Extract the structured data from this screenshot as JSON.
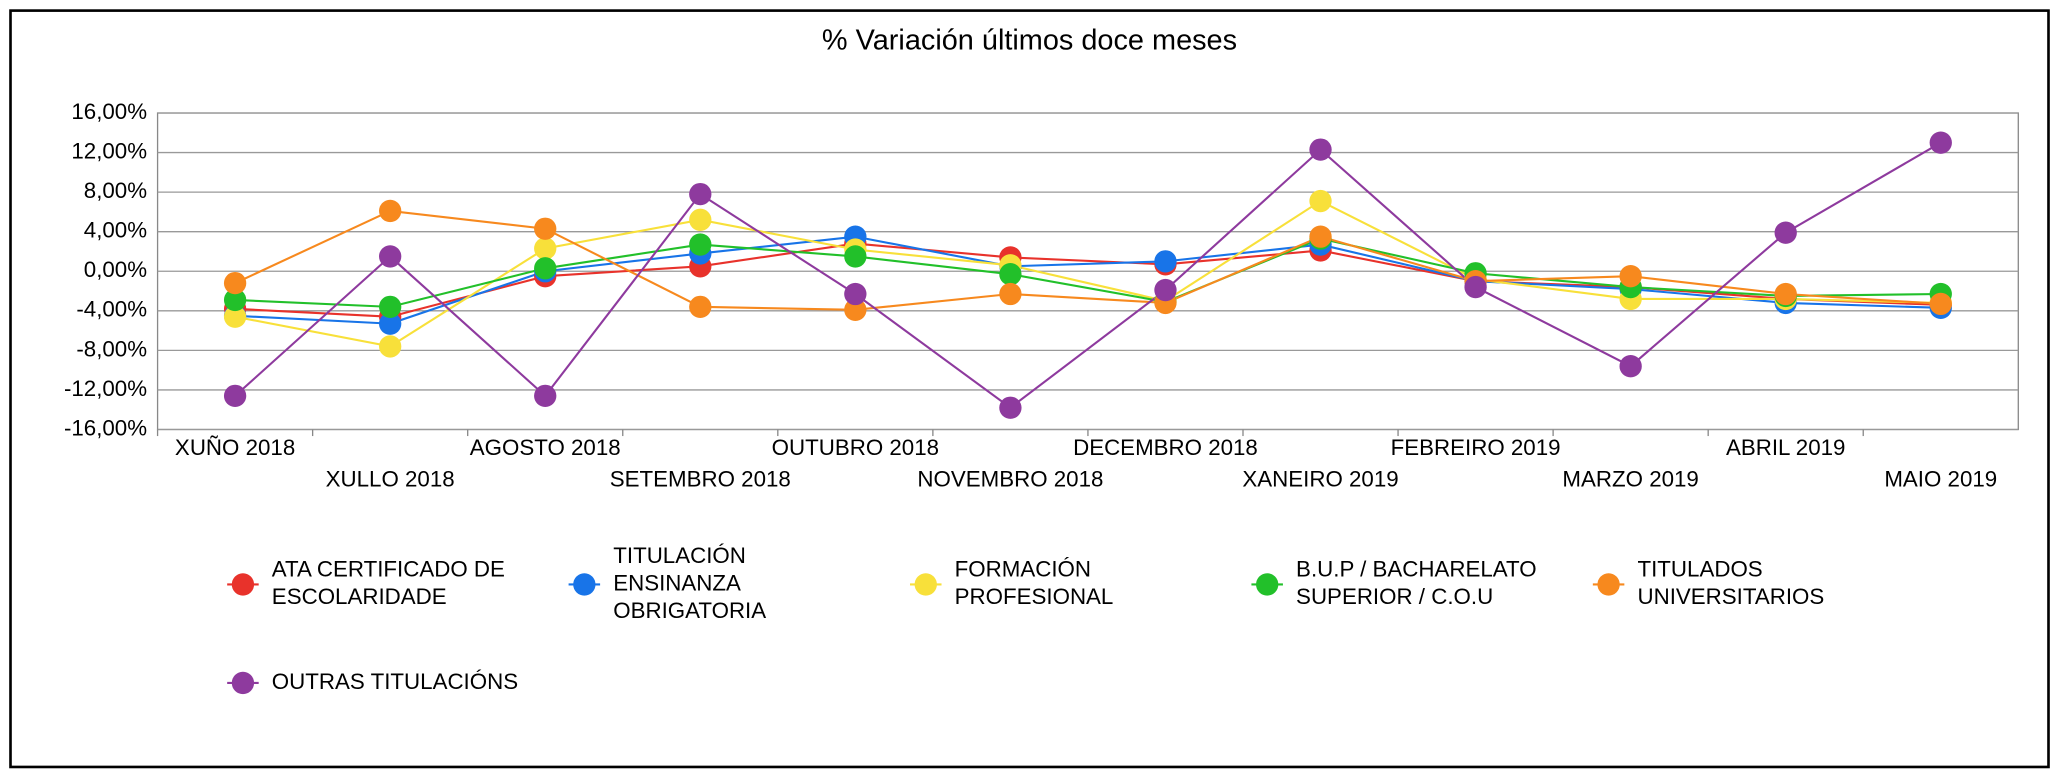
{
  "chart_data": {
    "type": "line",
    "title": "% Variación últimos doce meses",
    "categories": [
      "XUÑO 2018",
      "XULLO 2018",
      "AGOSTO 2018",
      "SETEMBRO 2018",
      "OUTUBRO 2018",
      "NOVEMBRO 2018",
      "DECEMBRO 2018",
      "XANEIRO 2019",
      "FEBREIRO 2019",
      "MARZO 2019",
      "ABRIL 2019",
      "MAIO 2019"
    ],
    "ylim": [
      -16,
      16
    ],
    "yticks": [
      {
        "value": -16,
        "label": "-16,00%"
      },
      {
        "value": -12,
        "label": "-12,00%"
      },
      {
        "value": -8,
        "label": "-8,00%"
      },
      {
        "value": -4,
        "label": "-4,00%"
      },
      {
        "value": 0,
        "label": "0,00%"
      },
      {
        "value": 4,
        "label": "4,00%"
      },
      {
        "value": 8,
        "label": "8,00%"
      },
      {
        "value": 12,
        "label": "12,00%"
      },
      {
        "value": 16,
        "label": "16,00%"
      }
    ],
    "grid": true,
    "legend": "bottom",
    "series": [
      {
        "name": "ATA CERTIFICADO DE\nESCOLARIDADE",
        "color": "#e8322b",
        "values": [
          -3.8,
          -4.6,
          -0.5,
          0.5,
          2.8,
          1.4,
          0.7,
          2.1,
          -1.0,
          -1.6,
          -2.8,
          -3.4
        ]
      },
      {
        "name": "TITULACIÓN\nENSINANZA\nOBRIGATORIA",
        "color": "#1874e8",
        "values": [
          -4.5,
          -5.3,
          0,
          1.8,
          3.5,
          0.5,
          1.0,
          2.7,
          -1.0,
          -1.8,
          -3.2,
          -3.7
        ]
      },
      {
        "name": "FORMACIÓN\nPROFESIONAL",
        "color": "#f8e03a",
        "values": [
          -4.6,
          -7.6,
          2.3,
          5.2,
          2.2,
          0.6,
          -3.0,
          7.1,
          -0.8,
          -2.8,
          -2.8,
          -3.2
        ]
      },
      {
        "name": "B.U.P / BACHARELATO\nSUPERIOR / C.O.U",
        "color": "#22c02a",
        "values": [
          -2.9,
          -3.6,
          0.3,
          2.7,
          1.5,
          -0.3,
          -3.1,
          3.3,
          -0.2,
          -1.6,
          -2.5,
          -2.3
        ]
      },
      {
        "name": "TITULADOS\nUNIVERSITARIOS",
        "color": "#f7891e",
        "values": [
          -1.2,
          6.1,
          4.3,
          -3.6,
          -3.9,
          -2.3,
          -3.2,
          3.5,
          -1.0,
          -0.5,
          -2.3,
          -3.3
        ]
      },
      {
        "name": "OUTRAS TITULACIÓNS",
        "color": "#8e3a9e",
        "values": [
          -12.6,
          1.5,
          -12.6,
          7.8,
          -2.3,
          -13.8,
          -1.9,
          12.3,
          -1.6,
          -9.6,
          3.9,
          13.0
        ]
      }
    ]
  }
}
